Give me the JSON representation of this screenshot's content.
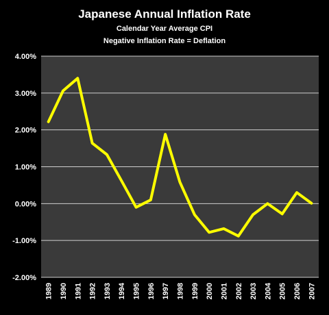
{
  "chart_data": {
    "type": "line",
    "title": "Japanese Annual Inflation Rate",
    "subtitle_lines": [
      "Calendar Year Average CPI",
      "Negative Inflation Rate = Deflation"
    ],
    "xlabel": "",
    "ylabel": "",
    "categories": [
      "1989",
      "1990",
      "1991",
      "1992",
      "1993",
      "1994",
      "1995",
      "1996",
      "1997",
      "1998",
      "1999",
      "2000",
      "2001",
      "2002",
      "2003",
      "2004",
      "2005",
      "2006",
      "2007"
    ],
    "series": [
      {
        "values": [
          2.22,
          3.06,
          3.4,
          1.64,
          1.33,
          0.62,
          -0.1,
          0.1,
          1.88,
          0.58,
          -0.3,
          -0.78,
          -0.68,
          -0.88,
          -0.3,
          0.0,
          -0.28,
          0.3,
          0.01
        ],
        "color": "#ffff00"
      }
    ],
    "ylim": [
      -2.0,
      4.0
    ],
    "yticks": [
      4.0,
      3.0,
      2.0,
      1.0,
      0.0,
      -1.0,
      -2.0
    ],
    "ytick_labels": [
      "4.00%",
      "3.00%",
      "2.00%",
      "1.00%",
      "0.00%",
      "-1.00%",
      "-2.00%"
    ],
    "grid": true,
    "legend": "none",
    "colors": {
      "background": "#000000",
      "plot_area": "#3a3a3a",
      "gridline": "#d0d0d0",
      "text": "#ffffff",
      "line": "#ffff00"
    }
  }
}
